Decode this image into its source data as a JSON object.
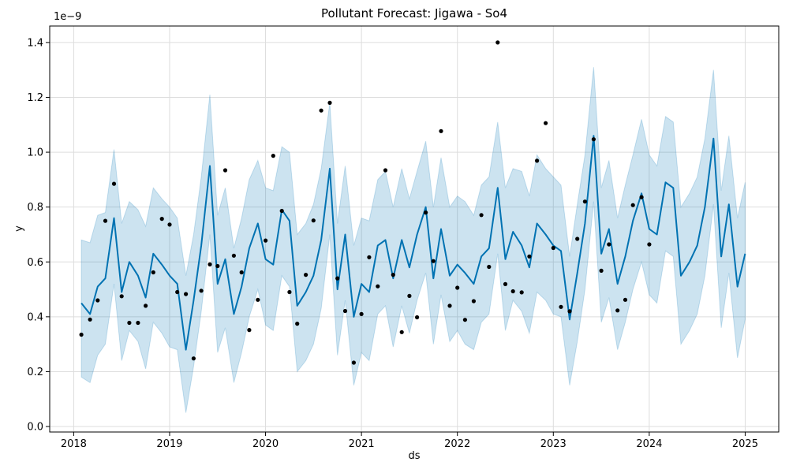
{
  "chart_data": {
    "type": "line",
    "title": "Pollutant Forecast: Jigawa - So4",
    "xlabel": "ds",
    "ylabel": "y",
    "y_scale_label": "1e−9",
    "xlim": [
      2017.75,
      2025.35
    ],
    "ylim": [
      -0.02,
      1.46
    ],
    "x_ticks": [
      2018,
      2019,
      2020,
      2021,
      2022,
      2023,
      2024,
      2025
    ],
    "x_tick_labels": [
      "2018",
      "2019",
      "2020",
      "2021",
      "2022",
      "2023",
      "2024",
      "2025"
    ],
    "y_ticks": [
      0.0,
      0.2,
      0.4,
      0.6,
      0.8,
      1.0,
      1.2,
      1.4
    ],
    "y_tick_labels": [
      "0.0",
      "0.2",
      "0.4",
      "0.6",
      "0.8",
      "1.0",
      "1.2",
      "1.4"
    ],
    "grid": true,
    "colors": {
      "forecast": "#0072b2",
      "band": "#0072b2",
      "observed": "#000000",
      "grid": "#dddddd"
    },
    "forecast": {
      "x": [
        2018.08,
        2018.17,
        2018.25,
        2018.33,
        2018.42,
        2018.5,
        2018.58,
        2018.67,
        2018.75,
        2018.83,
        2018.92,
        2019.0,
        2019.08,
        2019.17,
        2019.25,
        2019.33,
        2019.42,
        2019.5,
        2019.58,
        2019.67,
        2019.75,
        2019.83,
        2019.92,
        2020.0,
        2020.08,
        2020.17,
        2020.25,
        2020.33,
        2020.42,
        2020.5,
        2020.58,
        2020.67,
        2020.75,
        2020.83,
        2020.92,
        2021.0,
        2021.08,
        2021.17,
        2021.25,
        2021.33,
        2021.42,
        2021.5,
        2021.58,
        2021.67,
        2021.75,
        2021.83,
        2021.92,
        2022.0,
        2022.08,
        2022.17,
        2022.25,
        2022.33,
        2022.42,
        2022.5,
        2022.58,
        2022.67,
        2022.75,
        2022.83,
        2022.92,
        2023.0,
        2023.08,
        2023.17,
        2023.25,
        2023.33,
        2023.42,
        2023.5,
        2023.58,
        2023.67,
        2023.75,
        2023.83,
        2023.92,
        2024.0,
        2024.08,
        2024.17,
        2024.25,
        2024.33,
        2024.42,
        2024.5,
        2024.58,
        2024.67,
        2024.75,
        2024.83,
        2024.92,
        2025.0
      ],
      "yhat": [
        0.45,
        0.41,
        0.51,
        0.54,
        0.76,
        0.49,
        0.6,
        0.55,
        0.47,
        0.63,
        0.59,
        0.55,
        0.52,
        0.28,
        0.46,
        0.66,
        0.95,
        0.52,
        0.61,
        0.41,
        0.51,
        0.65,
        0.74,
        0.61,
        0.59,
        0.79,
        0.75,
        0.44,
        0.49,
        0.55,
        0.68,
        0.94,
        0.5,
        0.7,
        0.4,
        0.52,
        0.49,
        0.66,
        0.68,
        0.54,
        0.68,
        0.58,
        0.7,
        0.8,
        0.54,
        0.72,
        0.55,
        0.59,
        0.56,
        0.52,
        0.62,
        0.65,
        0.87,
        0.61,
        0.71,
        0.66,
        0.58,
        0.74,
        0.7,
        0.66,
        0.64,
        0.39,
        0.56,
        0.74,
        1.06,
        0.63,
        0.72,
        0.52,
        0.62,
        0.75,
        0.85,
        0.72,
        0.7,
        0.89,
        0.87,
        0.55,
        0.6,
        0.66,
        0.8,
        1.05,
        0.62,
        0.81,
        0.51,
        0.63
      ],
      "yhat_upper": [
        0.68,
        0.67,
        0.77,
        0.78,
        1.01,
        0.74,
        0.82,
        0.79,
        0.73,
        0.87,
        0.83,
        0.8,
        0.76,
        0.55,
        0.7,
        0.91,
        1.21,
        0.77,
        0.87,
        0.65,
        0.76,
        0.9,
        0.97,
        0.87,
        0.86,
        1.02,
        1.0,
        0.7,
        0.74,
        0.81,
        0.94,
        1.18,
        0.74,
        0.95,
        0.66,
        0.76,
        0.75,
        0.9,
        0.93,
        0.8,
        0.94,
        0.83,
        0.93,
        1.04,
        0.8,
        0.98,
        0.8,
        0.84,
        0.82,
        0.77,
        0.88,
        0.91,
        1.11,
        0.87,
        0.94,
        0.93,
        0.84,
        0.99,
        0.94,
        0.91,
        0.88,
        0.62,
        0.81,
        0.99,
        1.31,
        0.87,
        0.97,
        0.76,
        0.88,
        0.99,
        1.12,
        0.99,
        0.95,
        1.13,
        1.11,
        0.8,
        0.85,
        0.91,
        1.05,
        1.3,
        0.86,
        1.06,
        0.76,
        0.89
      ],
      "yhat_lower": [
        0.18,
        0.16,
        0.26,
        0.3,
        0.52,
        0.24,
        0.35,
        0.31,
        0.21,
        0.38,
        0.34,
        0.29,
        0.28,
        0.05,
        0.22,
        0.42,
        0.7,
        0.27,
        0.36,
        0.16,
        0.27,
        0.4,
        0.5,
        0.37,
        0.35,
        0.55,
        0.51,
        0.2,
        0.24,
        0.3,
        0.43,
        0.7,
        0.26,
        0.46,
        0.15,
        0.27,
        0.24,
        0.41,
        0.44,
        0.29,
        0.44,
        0.34,
        0.46,
        0.56,
        0.3,
        0.48,
        0.31,
        0.35,
        0.3,
        0.28,
        0.38,
        0.41,
        0.63,
        0.35,
        0.46,
        0.42,
        0.34,
        0.49,
        0.46,
        0.41,
        0.4,
        0.15,
        0.31,
        0.5,
        0.82,
        0.38,
        0.47,
        0.28,
        0.38,
        0.5,
        0.6,
        0.48,
        0.45,
        0.64,
        0.62,
        0.3,
        0.35,
        0.41,
        0.55,
        0.81,
        0.36,
        0.56,
        0.25,
        0.39
      ]
    },
    "observed": {
      "x": [
        2018.08,
        2018.17,
        2018.25,
        2018.33,
        2018.42,
        2018.5,
        2018.58,
        2018.67,
        2018.75,
        2018.83,
        2018.92,
        2019.0,
        2019.08,
        2019.17,
        2019.25,
        2019.33,
        2019.42,
        2019.5,
        2019.58,
        2019.67,
        2019.75,
        2019.83,
        2019.92,
        2020.0,
        2020.08,
        2020.17,
        2020.25,
        2020.33,
        2020.42,
        2020.5,
        2020.58,
        2020.67,
        2020.75,
        2020.83,
        2020.92,
        2021.0,
        2021.08,
        2021.17,
        2021.25,
        2021.33,
        2021.42,
        2021.5,
        2021.58,
        2021.67,
        2021.75,
        2021.83,
        2021.92,
        2022.0,
        2022.08,
        2022.17,
        2022.25,
        2022.33,
        2022.42,
        2022.5,
        2022.58,
        2022.67,
        2022.75,
        2022.83,
        2022.92,
        2023.0,
        2023.08,
        2023.17,
        2023.25,
        2023.33,
        2023.42,
        2023.5,
        2023.58,
        2023.67,
        2023.75,
        2023.83,
        2023.92,
        2024.0
      ],
      "y": [
        0.335,
        0.39,
        0.46,
        0.75,
        0.885,
        0.475,
        0.378,
        0.378,
        0.44,
        0.562,
        0.757,
        0.736,
        0.49,
        0.483,
        0.248,
        0.495,
        0.591,
        0.585,
        0.934,
        0.623,
        0.562,
        0.352,
        0.462,
        0.678,
        0.987,
        0.786,
        0.49,
        0.375,
        0.553,
        0.751,
        1.152,
        1.18,
        0.54,
        0.421,
        0.233,
        0.41,
        0.617,
        0.511,
        0.934,
        0.553,
        0.344,
        0.476,
        0.398,
        0.78,
        0.603,
        1.077,
        0.44,
        0.506,
        0.389,
        0.457,
        0.771,
        0.582,
        1.4,
        0.519,
        0.493,
        0.489,
        0.62,
        0.969,
        1.106,
        0.651,
        0.436,
        0.42,
        0.684,
        0.82,
        1.047,
        0.568,
        0.664,
        0.423,
        0.462,
        0.807,
        0.836,
        0.664
      ]
    }
  }
}
